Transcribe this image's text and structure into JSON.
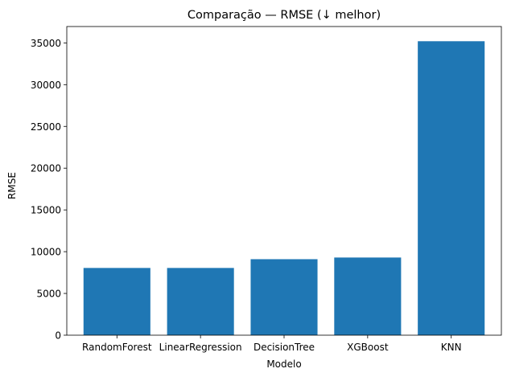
{
  "chart_data": {
    "type": "bar",
    "title": "Comparação — RMSE (↓ melhor)",
    "xlabel": "Modelo",
    "ylabel": "RMSE",
    "categories": [
      "RandomForest",
      "LinearRegression",
      "DecisionTree",
      "XGBoost",
      "KNN"
    ],
    "values": [
      8050,
      8050,
      9100,
      9300,
      35200
    ],
    "ylim": [
      0,
      36960
    ],
    "yticks": [
      0,
      5000,
      10000,
      15000,
      20000,
      25000,
      30000,
      35000
    ],
    "grid": false,
    "legend": "none",
    "bar_color": "#1f77b4"
  }
}
